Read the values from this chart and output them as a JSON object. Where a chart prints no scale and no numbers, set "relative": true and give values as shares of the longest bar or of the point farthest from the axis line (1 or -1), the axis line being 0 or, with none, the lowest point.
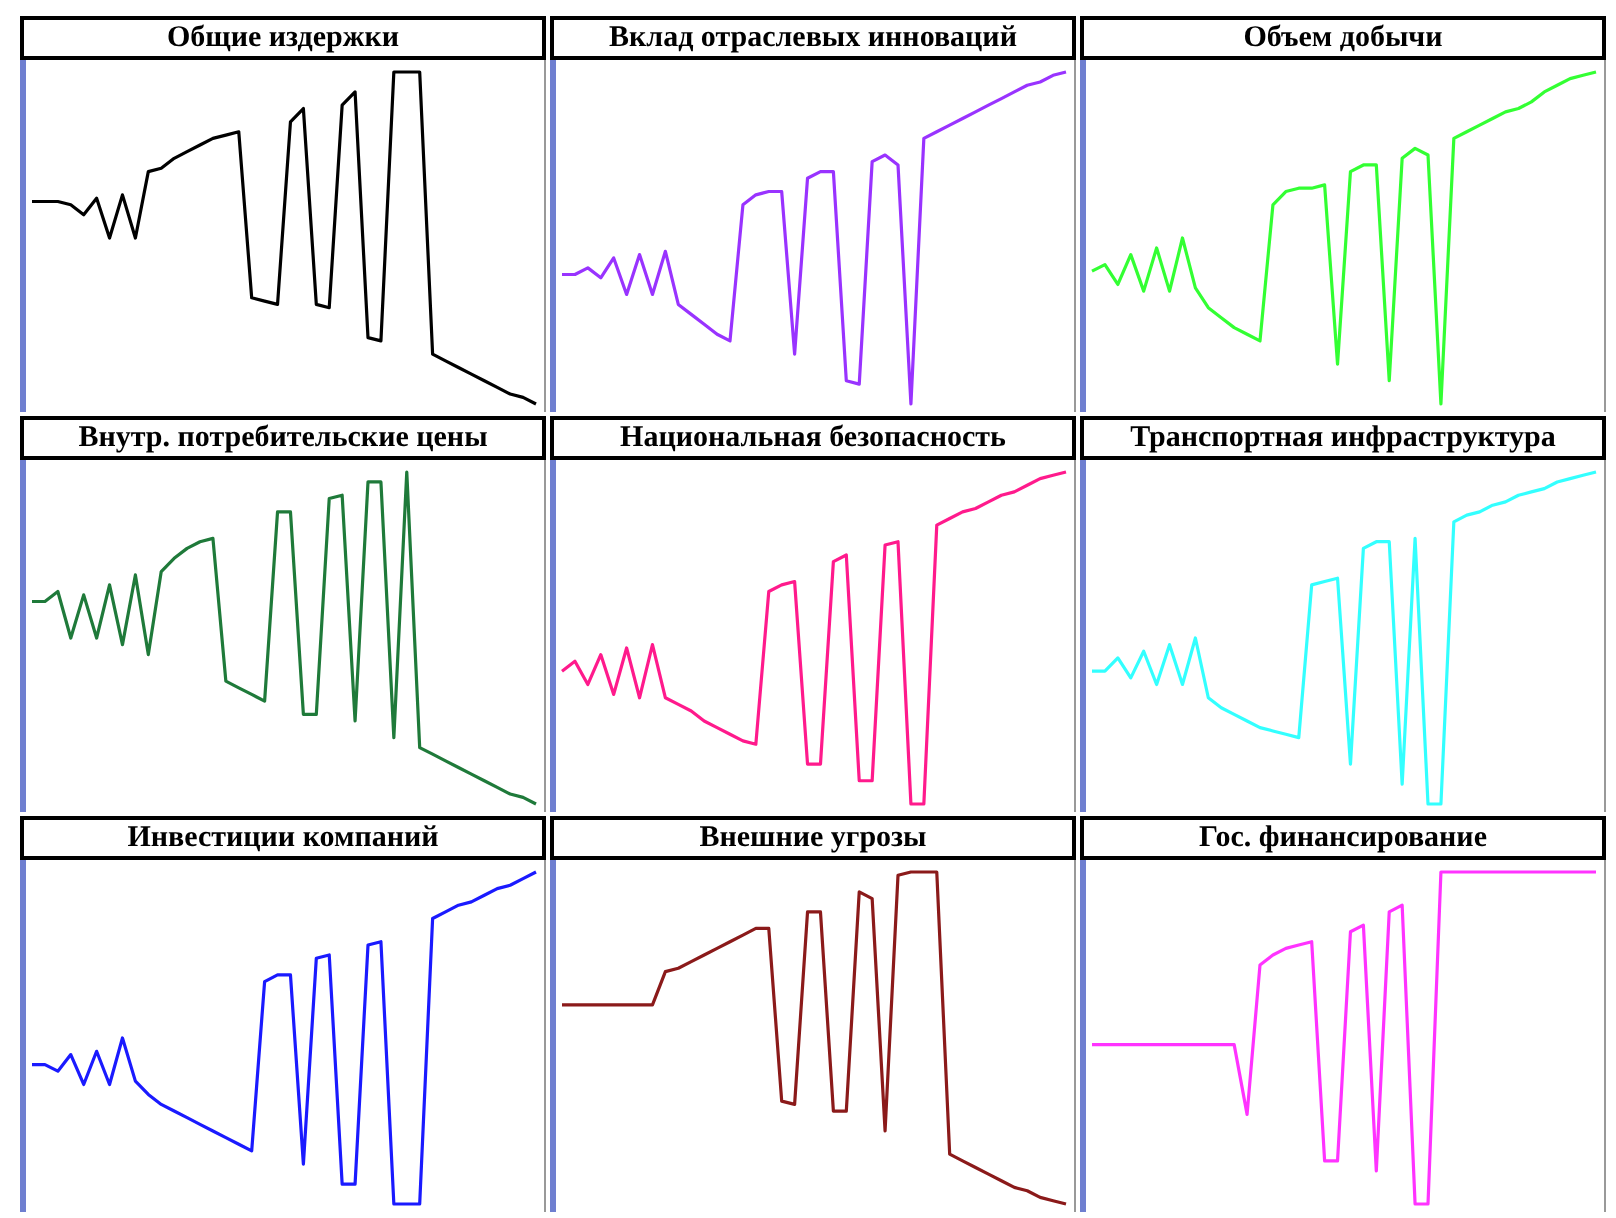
{
  "chart_data": [
    {
      "type": "line",
      "title": "Общие издержки",
      "relative": true,
      "categories": [
        null,
        null,
        null,
        null,
        null,
        null,
        null,
        null,
        null,
        null,
        null,
        null,
        null,
        null,
        null,
        null,
        null,
        null,
        null,
        null,
        null,
        null,
        null,
        null,
        null,
        null,
        null,
        null,
        null,
        null,
        null,
        null,
        null,
        null,
        null,
        null,
        null,
        null,
        null,
        null
      ],
      "series": [
        {
          "color": "#000000",
          "values": [
            0.61,
            0.61,
            0.61,
            0.6,
            0.57,
            0.62,
            0.5,
            0.63,
            0.5,
            0.7,
            0.71,
            0.74,
            0.76,
            0.78,
            0.8,
            0.81,
            0.82,
            0.32,
            0.31,
            0.3,
            0.85,
            0.89,
            0.3,
            0.29,
            0.9,
            0.94,
            0.2,
            0.19,
            1,
            1,
            1,
            0.15,
            0.13,
            0.11,
            0.09,
            0.07,
            0.05,
            0.03,
            0.02,
            0
          ]
        }
      ]
    },
    {
      "type": "line",
      "title": "Вклад отраслевых инноваций",
      "relative": true,
      "categories": [
        null,
        null,
        null,
        null,
        null,
        null,
        null,
        null,
        null,
        null,
        null,
        null,
        null,
        null,
        null,
        null,
        null,
        null,
        null,
        null,
        null,
        null,
        null,
        null,
        null,
        null,
        null,
        null,
        null,
        null,
        null,
        null,
        null,
        null,
        null,
        null,
        null,
        null,
        null,
        null
      ],
      "series": [
        {
          "color": "#9933ff",
          "values": [
            0.39,
            0.39,
            0.41,
            0.38,
            0.44,
            0.33,
            0.45,
            0.33,
            0.46,
            0.3,
            0.27,
            0.24,
            0.21,
            0.19,
            0.6,
            0.63,
            0.64,
            0.64,
            0.15,
            0.68,
            0.7,
            0.7,
            0.07,
            0.06,
            0.73,
            0.75,
            0.72,
            0,
            0.8,
            0.82,
            0.84,
            0.86,
            0.88,
            0.9,
            0.92,
            0.94,
            0.96,
            0.97,
            0.99,
            1
          ]
        }
      ]
    },
    {
      "type": "line",
      "title": "Объем добычи",
      "relative": true,
      "categories": [
        null,
        null,
        null,
        null,
        null,
        null,
        null,
        null,
        null,
        null,
        null,
        null,
        null,
        null,
        null,
        null,
        null,
        null,
        null,
        null,
        null,
        null,
        null,
        null,
        null,
        null,
        null,
        null,
        null,
        null,
        null,
        null,
        null,
        null,
        null,
        null,
        null,
        null,
        null,
        null
      ],
      "series": [
        {
          "color": "#33ff33",
          "values": [
            0.4,
            0.42,
            0.36,
            0.45,
            0.34,
            0.47,
            0.34,
            0.5,
            0.35,
            0.29,
            0.26,
            0.23,
            0.21,
            0.19,
            0.6,
            0.64,
            0.65,
            0.65,
            0.66,
            0.12,
            0.7,
            0.72,
            0.72,
            0.07,
            0.74,
            0.77,
            0.75,
            0,
            0.8,
            0.82,
            0.84,
            0.86,
            0.88,
            0.89,
            0.91,
            0.94,
            0.96,
            0.98,
            0.99,
            1
          ]
        }
      ]
    },
    {
      "type": "line",
      "title": "Внутр. потребительские цены",
      "relative": true,
      "categories": [
        null,
        null,
        null,
        null,
        null,
        null,
        null,
        null,
        null,
        null,
        null,
        null,
        null,
        null,
        null,
        null,
        null,
        null,
        null,
        null,
        null,
        null,
        null,
        null,
        null,
        null,
        null,
        null,
        null,
        null,
        null,
        null,
        null,
        null,
        null,
        null,
        null,
        null,
        null,
        null
      ],
      "series": [
        {
          "color": "#1f7a3a",
          "values": [
            0.61,
            0.61,
            0.64,
            0.5,
            0.63,
            0.5,
            0.66,
            0.48,
            0.69,
            0.45,
            0.7,
            0.74,
            0.77,
            0.79,
            0.8,
            0.37,
            0.35,
            0.33,
            0.31,
            0.88,
            0.88,
            0.27,
            0.27,
            0.92,
            0.93,
            0.25,
            0.97,
            0.97,
            0.2,
            1,
            0.17,
            0.15,
            0.13,
            0.11,
            0.09,
            0.07,
            0.05,
            0.03,
            0.02,
            0
          ]
        }
      ]
    },
    {
      "type": "line",
      "title": "Национальная безопасность",
      "relative": true,
      "categories": [
        null,
        null,
        null,
        null,
        null,
        null,
        null,
        null,
        null,
        null,
        null,
        null,
        null,
        null,
        null,
        null,
        null,
        null,
        null,
        null,
        null,
        null,
        null,
        null,
        null,
        null,
        null,
        null,
        null,
        null,
        null,
        null,
        null,
        null,
        null,
        null,
        null,
        null,
        null,
        null
      ],
      "series": [
        {
          "color": "#ff1a8c",
          "values": [
            0.4,
            0.43,
            0.36,
            0.45,
            0.33,
            0.47,
            0.32,
            0.48,
            0.32,
            0.3,
            0.28,
            0.25,
            0.23,
            0.21,
            0.19,
            0.18,
            0.64,
            0.66,
            0.67,
            0.12,
            0.12,
            0.73,
            0.75,
            0.07,
            0.07,
            0.78,
            0.79,
            0,
            0,
            0.84,
            0.86,
            0.88,
            0.89,
            0.91,
            0.93,
            0.94,
            0.96,
            0.98,
            0.99,
            1
          ]
        }
      ]
    },
    {
      "type": "line",
      "title": "Транспортная инфраструктура",
      "relative": true,
      "categories": [
        null,
        null,
        null,
        null,
        null,
        null,
        null,
        null,
        null,
        null,
        null,
        null,
        null,
        null,
        null,
        null,
        null,
        null,
        null,
        null,
        null,
        null,
        null,
        null,
        null,
        null,
        null,
        null,
        null,
        null,
        null,
        null,
        null,
        null,
        null,
        null,
        null,
        null,
        null,
        null
      ],
      "series": [
        {
          "color": "#33ffff",
          "values": [
            0.4,
            0.4,
            0.44,
            0.38,
            0.46,
            0.36,
            0.48,
            0.36,
            0.5,
            0.32,
            0.29,
            0.27,
            0.25,
            0.23,
            0.22,
            0.21,
            0.2,
            0.66,
            0.67,
            0.68,
            0.12,
            0.77,
            0.79,
            0.79,
            0.06,
            0.8,
            0,
            0,
            0.85,
            0.87,
            0.88,
            0.9,
            0.91,
            0.93,
            0.94,
            0.95,
            0.97,
            0.98,
            0.99,
            1
          ]
        }
      ]
    },
    {
      "type": "line",
      "title": "Инвестиции компаний",
      "relative": true,
      "categories": [
        null,
        null,
        null,
        null,
        null,
        null,
        null,
        null,
        null,
        null,
        null,
        null,
        null,
        null,
        null,
        null,
        null,
        null,
        null,
        null,
        null,
        null,
        null,
        null,
        null,
        null,
        null,
        null,
        null,
        null,
        null,
        null,
        null,
        null,
        null,
        null,
        null,
        null,
        null,
        null
      ],
      "series": [
        {
          "color": "#1a1aff",
          "values": [
            0.42,
            0.42,
            0.4,
            0.45,
            0.36,
            0.46,
            0.36,
            0.5,
            0.37,
            0.33,
            0.3,
            0.28,
            0.26,
            0.24,
            0.22,
            0.2,
            0.18,
            0.16,
            0.67,
            0.69,
            0.69,
            0.12,
            0.74,
            0.75,
            0.06,
            0.06,
            0.78,
            0.79,
            0,
            0,
            0,
            0.86,
            0.88,
            0.9,
            0.91,
            0.93,
            0.95,
            0.96,
            0.98,
            1
          ]
        }
      ]
    },
    {
      "type": "line",
      "title": "Внешние угрозы",
      "relative": true,
      "categories": [
        null,
        null,
        null,
        null,
        null,
        null,
        null,
        null,
        null,
        null,
        null,
        null,
        null,
        null,
        null,
        null,
        null,
        null,
        null,
        null,
        null,
        null,
        null,
        null,
        null,
        null,
        null,
        null,
        null,
        null,
        null,
        null,
        null,
        null,
        null,
        null,
        null,
        null,
        null,
        null
      ],
      "series": [
        {
          "color": "#8b1a1a",
          "values": [
            0.6,
            0.6,
            0.6,
            0.6,
            0.6,
            0.6,
            0.6,
            0.6,
            0.7,
            0.71,
            0.73,
            0.75,
            0.77,
            0.79,
            0.81,
            0.83,
            0.83,
            0.31,
            0.3,
            0.88,
            0.88,
            0.28,
            0.28,
            0.94,
            0.92,
            0.22,
            0.99,
            1,
            1,
            1,
            0.15,
            0.13,
            0.11,
            0.09,
            0.07,
            0.05,
            0.04,
            0.02,
            0.01,
            0
          ]
        }
      ]
    },
    {
      "type": "line",
      "title": "Гос. финансирование",
      "relative": true,
      "categories": [
        null,
        null,
        null,
        null,
        null,
        null,
        null,
        null,
        null,
        null,
        null,
        null,
        null,
        null,
        null,
        null,
        null,
        null,
        null,
        null,
        null,
        null,
        null,
        null,
        null,
        null,
        null,
        null,
        null,
        null,
        null,
        null,
        null,
        null,
        null,
        null,
        null,
        null,
        null,
        null
      ],
      "series": [
        {
          "color": "#ff33ff",
          "values": [
            0.48,
            0.48,
            0.48,
            0.48,
            0.48,
            0.48,
            0.48,
            0.48,
            0.48,
            0.48,
            0.48,
            0.48,
            0.27,
            0.72,
            0.75,
            0.77,
            0.78,
            0.79,
            0.13,
            0.13,
            0.82,
            0.84,
            0.1,
            0.88,
            0.9,
            0,
            0,
            1,
            1,
            1,
            1,
            1,
            1,
            1,
            1,
            1,
            1,
            1,
            1,
            1
          ]
        }
      ]
    }
  ]
}
